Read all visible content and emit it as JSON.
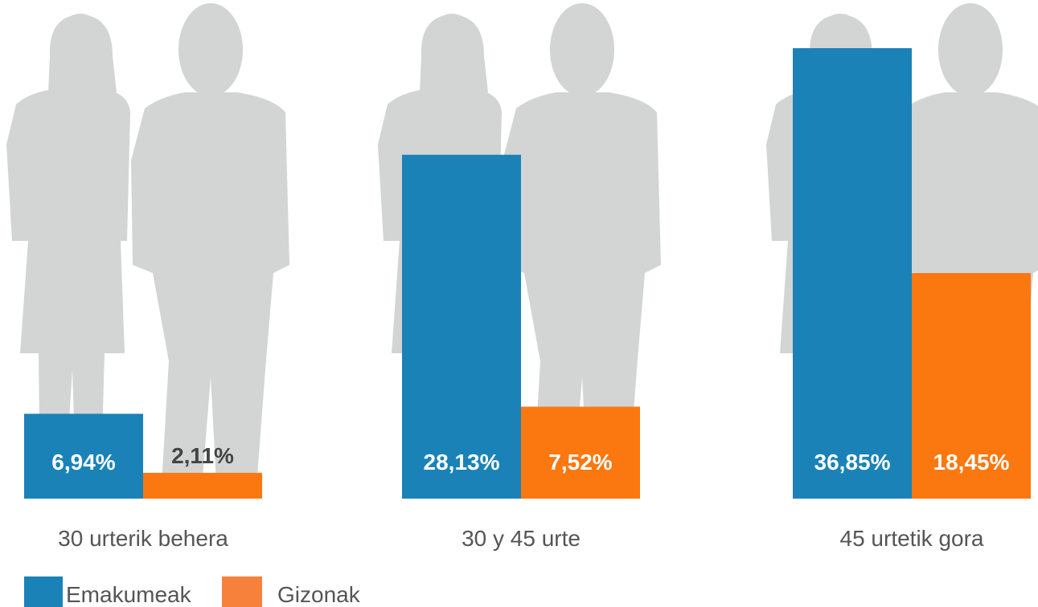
{
  "chart_data": {
    "type": "bar",
    "categories": [
      "30 urterik behera",
      "30 y 45 urte",
      "45 urtetik gora"
    ],
    "series": [
      {
        "name": "Emakumeak",
        "color": "#1b82b8",
        "values": [
          6.94,
          28.13,
          36.85
        ],
        "value_labels": [
          "6,94%",
          "28,13%",
          "36,85%"
        ]
      },
      {
        "name": "Gizonak",
        "color": "#fb7710",
        "values": [
          2.11,
          7.52,
          18.45
        ],
        "value_labels": [
          "2,11%",
          "7,52%",
          "18,45%"
        ]
      }
    ]
  }
}
